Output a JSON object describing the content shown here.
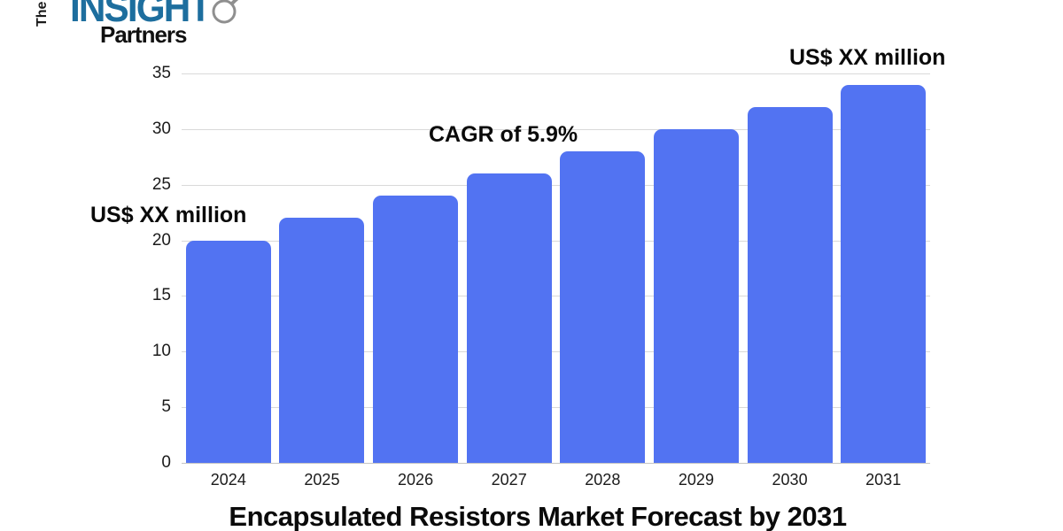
{
  "logo": {
    "the": "The",
    "insight": "INSIGHT",
    "partners": "Partners",
    "insight_color": "#1d6e9e",
    "magnifier_color": "#8f8f8f"
  },
  "chart_data": {
    "type": "bar",
    "categories": [
      "2024",
      "2025",
      "2026",
      "2027",
      "2028",
      "2029",
      "2030",
      "2031"
    ],
    "values": [
      20,
      22,
      24,
      26,
      28,
      30,
      32,
      34
    ],
    "title": "Encapsulated Resistors Market Forecast by 2031",
    "xlabel": "",
    "ylabel": "",
    "ylim": [
      0,
      35
    ],
    "yticks": [
      0,
      5,
      10,
      15,
      20,
      25,
      30,
      35
    ],
    "grid": true,
    "legend": "none",
    "bar_color": "#5273f2",
    "gridline_color": "#d9d9d9",
    "annotations": [
      {
        "text": "US$ XX million",
        "target": "first-bar"
      },
      {
        "text": "CAGR of 5.9%",
        "target": "center"
      },
      {
        "text": "US$ XX million",
        "target": "last-bar"
      }
    ]
  }
}
